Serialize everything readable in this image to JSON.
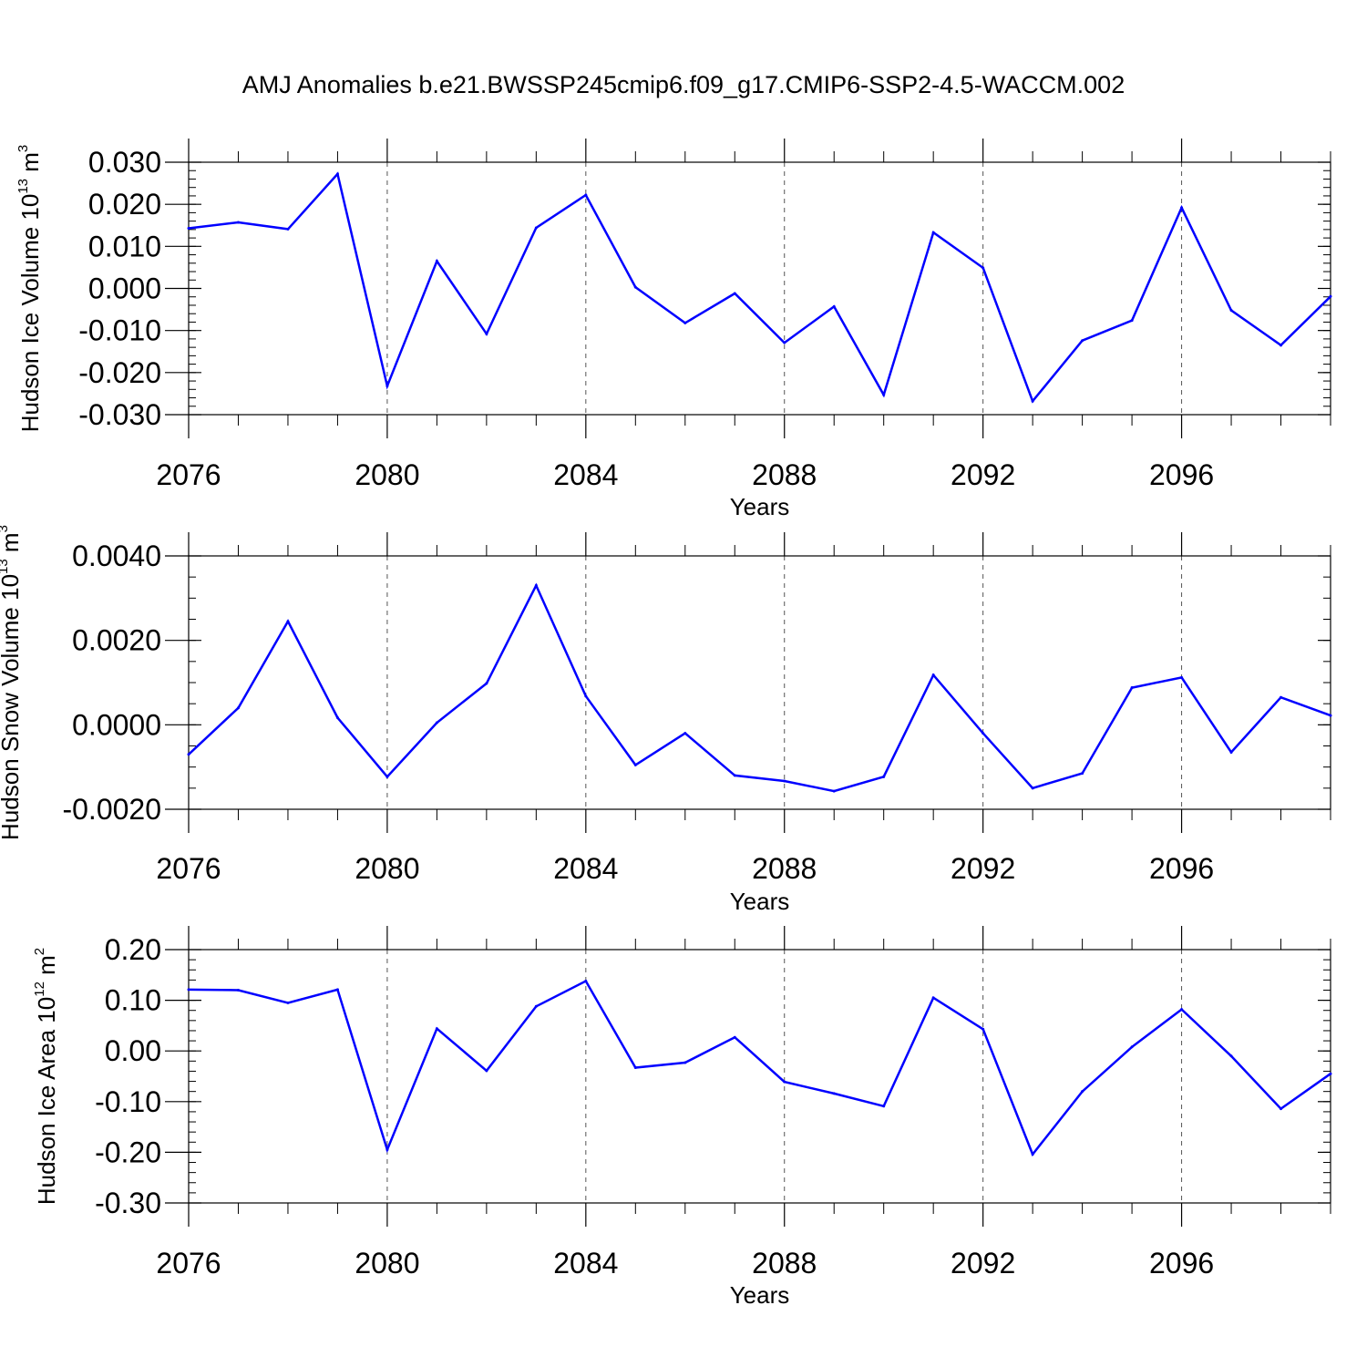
{
  "title": "AMJ Anomalies b.e21.BWSSP245cmip6.f09_g17.CMIP6-SSP2-4.5-WACCM.002",
  "chart_data": [
    {
      "type": "line",
      "ylabel": "Hudson Ice Volume 10",
      "ylabel_exp": "13",
      "ylabel_unit": " m",
      "ylabel_unit_exp": "3",
      "xlabel": "Years",
      "x": [
        2076,
        2077,
        2078,
        2079,
        2080,
        2081,
        2082,
        2083,
        2084,
        2085,
        2086,
        2087,
        2088,
        2089,
        2090,
        2091,
        2092,
        2093,
        2094,
        2095,
        2096,
        2097,
        2098,
        2099
      ],
      "values": [
        0.0143,
        0.0157,
        0.0141,
        0.0272,
        -0.0232,
        0.0065,
        -0.0108,
        0.0144,
        0.0222,
        0.0003,
        -0.0082,
        -0.0012,
        -0.0129,
        -0.0043,
        -0.0253,
        0.0133,
        0.0049,
        -0.0268,
        -0.0124,
        -0.0076,
        0.0192,
        -0.0052,
        -0.0135,
        -0.0019
      ],
      "xlim": [
        2076,
        2099
      ],
      "ylim": [
        -0.03,
        0.03
      ],
      "yticks": [
        -0.03,
        -0.02,
        -0.01,
        0.0,
        0.01,
        0.02,
        0.03
      ],
      "ytick_labels": [
        "-0.030",
        "-0.020",
        "-0.010",
        "0.000",
        "0.010",
        "0.020",
        "0.030"
      ],
      "yminor": 0.002,
      "xticks": [
        2076,
        2080,
        2084,
        2088,
        2092,
        2096
      ],
      "xtick_labels": [
        "2076",
        "2080",
        "2084",
        "2088",
        "2092",
        "2096"
      ],
      "grid_x": [
        2080,
        2084,
        2088,
        2092,
        2096
      ],
      "color": "#0000ff"
    },
    {
      "type": "line",
      "ylabel": "Hudson Snow Volume 10",
      "ylabel_exp": "13",
      "ylabel_unit": " m",
      "ylabel_unit_exp": "3",
      "xlabel": "Years",
      "x": [
        2076,
        2077,
        2078,
        2079,
        2080,
        2081,
        2082,
        2083,
        2084,
        2085,
        2086,
        2087,
        2088,
        2089,
        2090,
        2091,
        2092,
        2093,
        2094,
        2095,
        2096,
        2097,
        2098,
        2099
      ],
      "values": [
        -0.0007,
        0.0004,
        0.00245,
        0.00017,
        -0.00123,
        5e-05,
        0.00098,
        0.0033,
        0.00068,
        -0.00095,
        -0.0002,
        -0.0012,
        -0.00133,
        -0.00157,
        -0.00123,
        0.00118,
        -0.0002,
        -0.0015,
        -0.00115,
        0.00088,
        0.00112,
        -0.00065,
        0.00065,
        0.00022
      ],
      "xlim": [
        2076,
        2099
      ],
      "ylim": [
        -0.002,
        0.004
      ],
      "yticks": [
        -0.002,
        0.0,
        0.002,
        0.004
      ],
      "ytick_labels": [
        "-0.0020",
        "0.0000",
        "0.0020",
        "0.0040"
      ],
      "yminor": 0.0005,
      "xticks": [
        2076,
        2080,
        2084,
        2088,
        2092,
        2096
      ],
      "xtick_labels": [
        "2076",
        "2080",
        "2084",
        "2088",
        "2092",
        "2096"
      ],
      "grid_x": [
        2080,
        2084,
        2088,
        2092,
        2096
      ],
      "color": "#0000ff"
    },
    {
      "type": "line",
      "ylabel": "Hudson Ice Area 10",
      "ylabel_exp": "12",
      "ylabel_unit": " m",
      "ylabel_unit_exp": "2",
      "xlabel": "Years",
      "x": [
        2076,
        2077,
        2078,
        2079,
        2080,
        2081,
        2082,
        2083,
        2084,
        2085,
        2086,
        2087,
        2088,
        2089,
        2090,
        2091,
        2092,
        2093,
        2094,
        2095,
        2096,
        2097,
        2098,
        2099
      ],
      "values": [
        0.121,
        0.12,
        0.095,
        0.121,
        -0.195,
        0.044,
        -0.039,
        0.088,
        0.138,
        -0.033,
        -0.023,
        0.027,
        -0.061,
        -0.084,
        -0.109,
        0.105,
        0.043,
        -0.204,
        -0.08,
        0.008,
        0.082,
        -0.01,
        -0.114,
        -0.045
      ],
      "xlim": [
        2076,
        2099
      ],
      "ylim": [
        -0.3,
        0.2
      ],
      "yticks": [
        -0.3,
        -0.2,
        -0.1,
        0.0,
        0.1,
        0.2
      ],
      "ytick_labels": [
        "-0.30",
        "-0.20",
        "-0.10",
        "0.00",
        "0.10",
        "0.20"
      ],
      "yminor": 0.02,
      "xticks": [
        2076,
        2080,
        2084,
        2088,
        2092,
        2096
      ],
      "xtick_labels": [
        "2076",
        "2080",
        "2084",
        "2088",
        "2092",
        "2096"
      ],
      "grid_x": [
        2080,
        2084,
        2088,
        2092,
        2096
      ],
      "color": "#0000ff"
    }
  ]
}
